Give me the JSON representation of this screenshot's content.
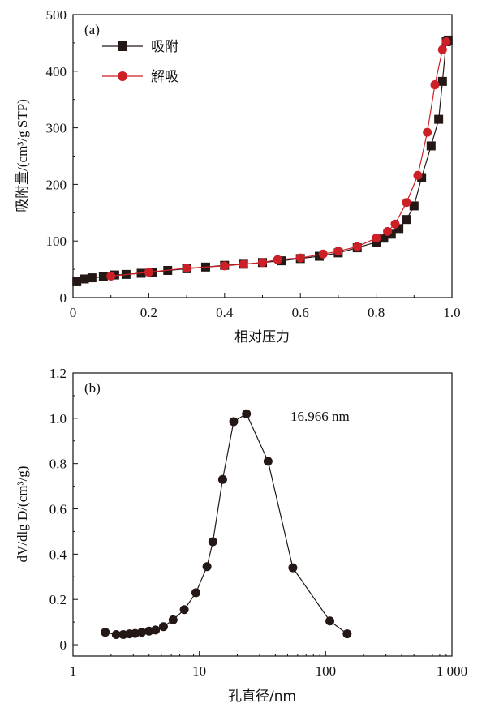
{
  "chart_data": [
    {
      "panel_label": "(a)",
      "type": "line",
      "xlabel": "相对压力",
      "ylabel": "吸附量/(cm³/g STP)",
      "xlim": [
        0,
        1.0
      ],
      "ylim": [
        0,
        500
      ],
      "xticks": [
        0,
        0.2,
        0.4,
        0.6,
        0.8,
        1.0
      ],
      "xtick_labels": [
        "0",
        "0.2",
        "0.4",
        "0.6",
        "0.8",
        "1.0"
      ],
      "yticks": [
        0,
        100,
        200,
        300,
        400,
        500
      ],
      "ytick_labels": [
        "0",
        "100",
        "200",
        "300",
        "400",
        "500"
      ],
      "legend_position": "top-left",
      "series": [
        {
          "name": "吸附",
          "color": "#231815",
          "marker": "square",
          "x": [
            0.01,
            0.03,
            0.05,
            0.08,
            0.11,
            0.14,
            0.18,
            0.21,
            0.25,
            0.3,
            0.35,
            0.4,
            0.45,
            0.5,
            0.55,
            0.6,
            0.65,
            0.7,
            0.75,
            0.8,
            0.82,
            0.84,
            0.86,
            0.88,
            0.9,
            0.92,
            0.945,
            0.965,
            0.975,
            0.985,
            0.99
          ],
          "y": [
            28,
            33,
            35,
            37,
            40,
            41,
            43,
            45,
            48,
            51,
            54,
            57,
            59,
            62,
            65,
            69,
            73,
            79,
            88,
            98,
            105,
            112,
            122,
            138,
            162,
            212,
            268,
            315,
            382,
            452,
            455
          ]
        },
        {
          "name": "解吸",
          "color": "#cc1f26",
          "marker": "circle",
          "x": [
            0.1,
            0.2,
            0.3,
            0.4,
            0.45,
            0.5,
            0.54,
            0.6,
            0.66,
            0.7,
            0.75,
            0.8,
            0.83,
            0.85,
            0.88,
            0.91,
            0.935,
            0.955,
            0.975,
            0.985
          ],
          "y": [
            38,
            45,
            52,
            56,
            59,
            62,
            67,
            70,
            77,
            82,
            90,
            105,
            117,
            130,
            168,
            216,
            292,
            376,
            438,
            452
          ]
        }
      ]
    },
    {
      "panel_label": "(b)",
      "type": "line",
      "xlabel": "孔直径/nm",
      "ylabel": "dV/dlg D/(cm³/g)",
      "xscale": "log",
      "xlim": [
        1,
        1000
      ],
      "ylim": [
        -0.05,
        1.2
      ],
      "xticks": [
        1,
        10,
        100,
        1000
      ],
      "xtick_labels": [
        "1",
        "10",
        "100",
        "1 000"
      ],
      "yticks": [
        0,
        0.2,
        0.4,
        0.6,
        0.8,
        1.0,
        1.2
      ],
      "ytick_labels": [
        "0",
        "0.2",
        "0.4",
        "0.6",
        "0.8",
        "1.0",
        "1.2"
      ],
      "annotation": "16.966 nm",
      "series": [
        {
          "color": "#231815",
          "marker": "circle",
          "x": [
            1.8,
            2.2,
            2.5,
            2.8,
            3.1,
            3.5,
            4.0,
            4.5,
            5.2,
            6.2,
            7.6,
            9.4,
            11.5,
            12.8,
            15.3,
            18.7,
            23.6,
            35.0,
            55.0,
            108,
            148
          ],
          "y": [
            0.055,
            0.045,
            0.045,
            0.048,
            0.05,
            0.055,
            0.06,
            0.065,
            0.08,
            0.11,
            0.155,
            0.23,
            0.345,
            0.455,
            0.73,
            0.985,
            1.02,
            0.81,
            0.34,
            0.105,
            0.048
          ]
        }
      ]
    }
  ]
}
